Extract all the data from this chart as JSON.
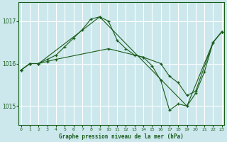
{
  "title": "Graphe pression niveau de la mer (hPa)",
  "background_color": "#cce8ed",
  "plot_bg_color": "#cce8ed",
  "line_color": "#1a5c1a",
  "marker": "+",
  "grid_color": "#ffffff",
  "xlabel_color": "#1a5c1a",
  "ylabel_color": "#1a5c1a",
  "tick_color": "#1a5c1a",
  "series": [
    {
      "x": [
        0,
        1,
        2,
        3,
        4,
        5,
        6,
        7,
        8,
        9,
        10,
        11,
        12,
        13,
        14,
        15,
        16,
        17,
        18,
        19,
        20,
        21,
        22,
        23
      ],
      "y": [
        1015.85,
        1016.0,
        1016.0,
        1016.1,
        1016.2,
        1016.4,
        1016.6,
        1016.8,
        1017.05,
        1017.1,
        1017.0,
        1016.55,
        1016.35,
        1016.2,
        1016.15,
        1015.95,
        1015.6,
        1014.9,
        1015.05,
        1015.0,
        1015.3,
        1015.8,
        1016.5,
        1016.75
      ]
    },
    {
      "x": [
        0,
        1,
        2,
        3,
        4,
        10,
        14,
        16,
        17,
        18,
        19,
        20,
        22,
        23
      ],
      "y": [
        1015.85,
        1016.0,
        1016.0,
        1016.05,
        1016.1,
        1016.35,
        1016.15,
        1016.0,
        1015.7,
        1015.55,
        1015.25,
        1015.35,
        1016.5,
        1016.75
      ]
    },
    {
      "x": [
        0,
        1,
        2,
        9,
        19,
        22,
        23
      ],
      "y": [
        1015.85,
        1016.0,
        1016.0,
        1017.1,
        1015.0,
        1016.5,
        1016.75
      ]
    }
  ],
  "yticks": [
    1015,
    1016,
    1017
  ],
  "ylim": [
    1014.55,
    1017.45
  ],
  "xlim": [
    -0.3,
    23.3
  ],
  "xticks": [
    0,
    1,
    2,
    3,
    4,
    5,
    6,
    7,
    8,
    9,
    10,
    11,
    12,
    13,
    14,
    15,
    16,
    17,
    18,
    19,
    20,
    21,
    22,
    23
  ]
}
